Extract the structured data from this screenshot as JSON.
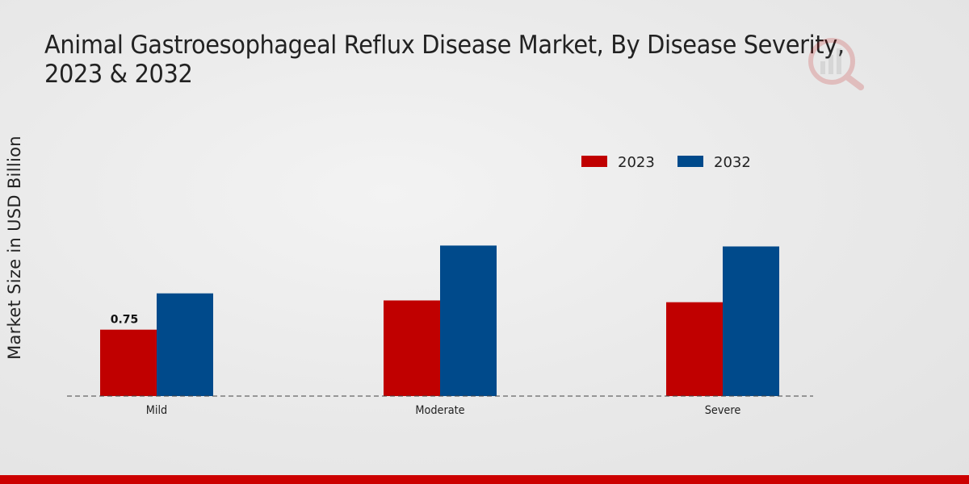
{
  "chart_data": {
    "type": "bar",
    "title": "Animal Gastroesophageal Reflux Disease Market, By Disease Severity, 2023 & 2032",
    "xlabel": "",
    "ylabel": "Market Size in USD Billion",
    "categories": [
      "Mild",
      "Moderate",
      "Severe"
    ],
    "series": [
      {
        "name": "2023",
        "color": "#c00000",
        "values": [
          0.75,
          1.08,
          1.06
        ]
      },
      {
        "name": "2032",
        "color": "#004a8b",
        "values": [
          1.16,
          1.7,
          1.69
        ]
      }
    ],
    "data_labels": [
      {
        "series": "2023",
        "category": "Mild",
        "text": "0.75"
      }
    ],
    "ylim": [
      0,
      4.2
    ],
    "grid": false,
    "legend_position": "top-right"
  }
}
